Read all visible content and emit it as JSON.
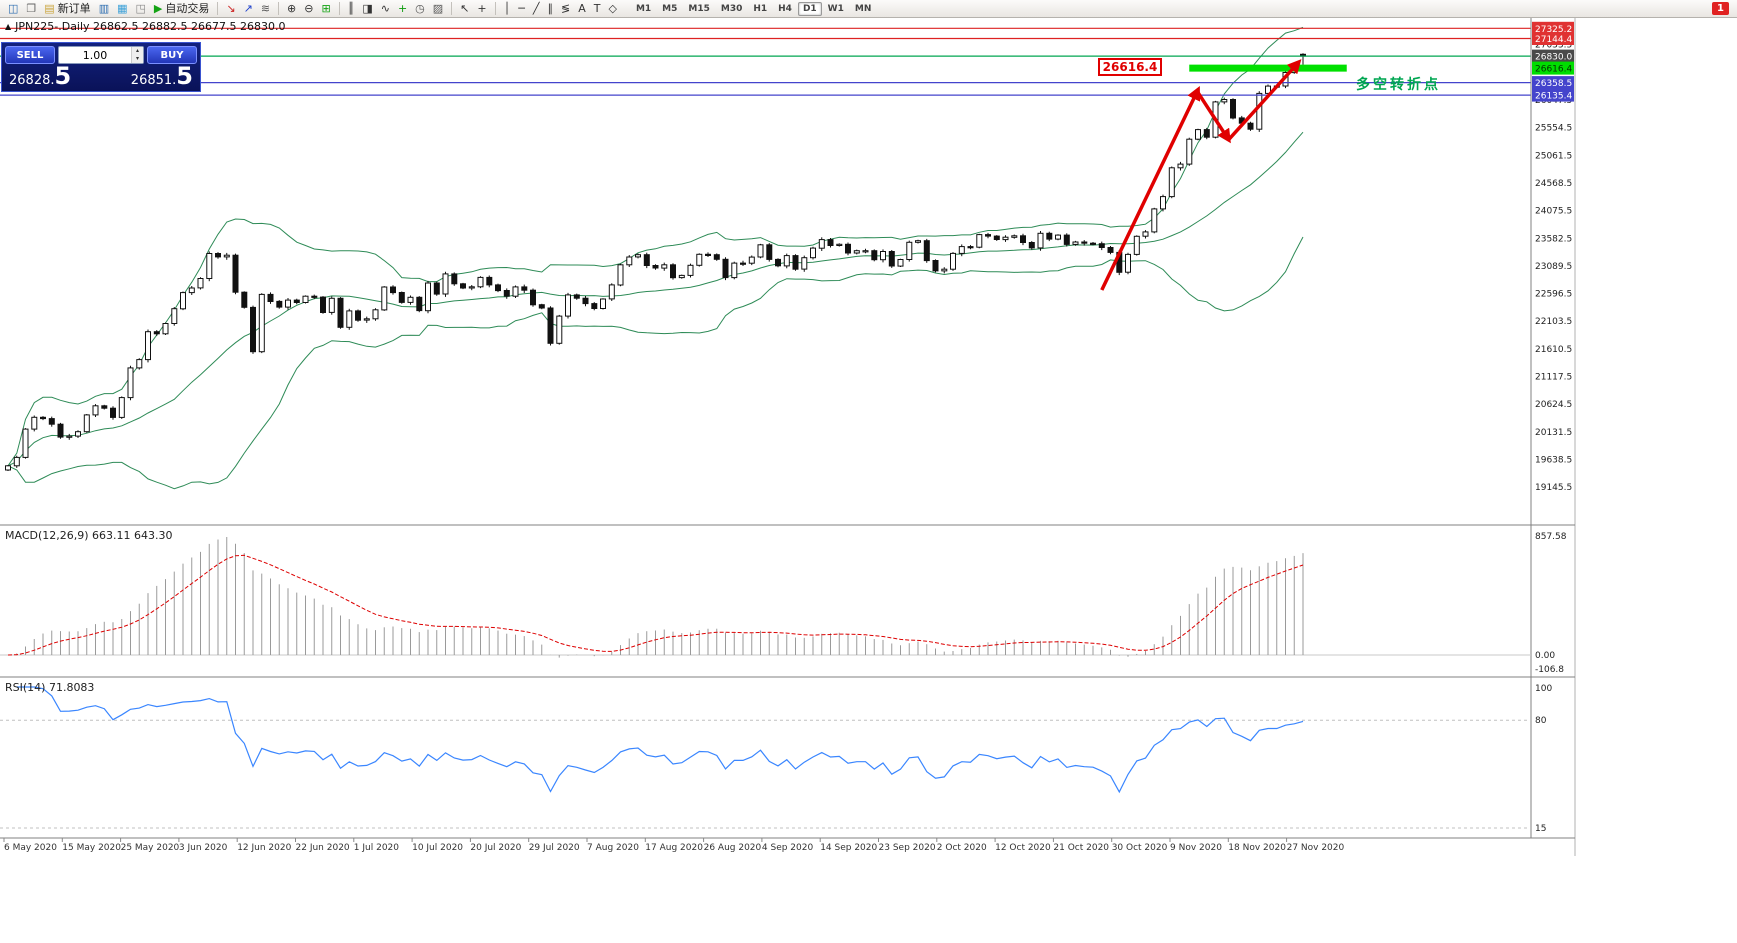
{
  "window": {
    "badge": "1"
  },
  "toolbar": {
    "items": [
      {
        "name": "new-chart-button",
        "glyph": "◫",
        "color": "#2b6cb0"
      },
      {
        "name": "profiles-button",
        "glyph": "❐",
        "color": "#666666"
      },
      {
        "name": "new-order-button",
        "glyph": "▤",
        "color": "#caa53d",
        "label": "新订单"
      },
      {
        "name": "market-watch-button",
        "glyph": "▥",
        "color": "#2b6cb0"
      },
      {
        "name": "data-window-button",
        "glyph": "▦",
        "color": "#3aa0d8"
      },
      {
        "name": "strategy-tester-button",
        "glyph": "◳",
        "color": "#888888"
      },
      {
        "name": "autotrade-button",
        "glyph": "▶",
        "color": "#15a315",
        "label": "自动交易"
      },
      {
        "sep": true
      },
      {
        "name": "sell-marker-button",
        "glyph": "↘",
        "color": "#cc2222"
      },
      {
        "name": "buy-marker-button",
        "glyph": "↗",
        "color": "#2244cc"
      },
      {
        "name": "depth-of-market-button",
        "glyph": "≋",
        "color": "#555555"
      },
      {
        "sep": true
      },
      {
        "name": "zoom-in-button",
        "glyph": "⊕",
        "color": "#333333"
      },
      {
        "name": "zoom-out-button",
        "glyph": "⊖",
        "color": "#333333"
      },
      {
        "name": "tile-windows-button",
        "glyph": "⊞",
        "color": "#15a315"
      },
      {
        "sep": true
      },
      {
        "name": "bar-chart-button",
        "glyph": "║",
        "color": "#333333"
      },
      {
        "name": "candle-chart-button",
        "glyph": "◨",
        "color": "#333333"
      },
      {
        "name": "line-chart-button",
        "glyph": "∿",
        "color": "#333333"
      },
      {
        "name": "add-indicator-button",
        "glyph": "+",
        "color": "#0a9a0a"
      },
      {
        "name": "periods-button",
        "glyph": "◷",
        "color": "#555555"
      },
      {
        "name": "templates-button",
        "glyph": "▨",
        "color": "#555555"
      },
      {
        "sep": true
      },
      {
        "name": "cursor-button",
        "glyph": "↖",
        "color": "#333333"
      },
      {
        "name": "crosshair-button",
        "glyph": "+",
        "color": "#333333"
      },
      {
        "sep": true
      },
      {
        "name": "vertical-line-button",
        "glyph": "│",
        "color": "#333333"
      },
      {
        "name": "horizontal-line-button",
        "glyph": "─",
        "color": "#333333"
      },
      {
        "name": "trendline-button",
        "glyph": "╱",
        "color": "#333333"
      },
      {
        "name": "channel-button",
        "glyph": "∥",
        "color": "#333333"
      },
      {
        "name": "fibonacci-button",
        "glyph": "≶",
        "color": "#333333"
      },
      {
        "name": "text-button",
        "glyph": "A",
        "color": "#333333"
      },
      {
        "name": "label-button",
        "glyph": "T",
        "color": "#333333"
      },
      {
        "name": "shapes-button",
        "glyph": "◇",
        "color": "#333333"
      }
    ],
    "timeframes": [
      "M1",
      "M5",
      "M15",
      "M30",
      "H1",
      "H4",
      "D1",
      "W1",
      "MN"
    ],
    "active_timeframe": "D1"
  },
  "chart_header": {
    "collapse_icon": "▲",
    "symbol_line": "JPN225-.Daily  26862.5 26882.5 26677.5 26830.0"
  },
  "trade_panel": {
    "sell_label": "SELL",
    "buy_label": "BUY",
    "volume": "1.00",
    "spin_up": "▴",
    "spin_down": "▾",
    "bid_main": "26828.",
    "bid_big": "5",
    "ask_main": "26851.",
    "ask_big": "5"
  },
  "annotations": {
    "price_label": "26616.4",
    "turning_point_note": "多空转折点"
  },
  "chart_data": {
    "type": "candlestick",
    "symbol": "JPN225-",
    "period": "Daily",
    "current_bar": {
      "open": 26862.5,
      "high": 26882.5,
      "low": 26677.5,
      "close": 26830.0
    },
    "indicators": [
      "Bollinger Bands (20,2)",
      "MACD(12,26,9)",
      "RSI(14)"
    ],
    "x_labels": [
      "6 May 2020",
      "15 May 2020",
      "25 May 2020",
      "3 Jun 2020",
      "12 Jun 2020",
      "22 Jun 2020",
      "1 Jul 2020",
      "10 Jul 2020",
      "20 Jul 2020",
      "29 Jul 2020",
      "7 Aug 2020",
      "17 Aug 2020",
      "26 Aug 2020",
      "4 Sep 2020",
      "14 Sep 2020",
      "23 Sep 2020",
      "2 Oct 2020",
      "12 Oct 2020",
      "21 Oct 2020",
      "30 Oct 2020",
      "9 Nov 2020",
      "18 Nov 2020",
      "27 Nov 2020"
    ],
    "closes": [
      19525,
      19675,
      20180,
      20390,
      20366,
      20267,
      20037,
      20055,
      20133,
      20433,
      20595,
      20552,
      20388,
      20741,
      21271,
      21419,
      21916,
      21878,
      22062,
      22326,
      22614,
      22696,
      22864,
      23310,
      23250,
      23280,
      22620,
      22350,
      21560,
      22582,
      22456,
      22355,
      22479,
      22437,
      22549,
      22534,
      22260,
      22512,
      21995,
      22288,
      22122,
      22146,
      22306,
      22714,
      22615,
      22438,
      22529,
      22291,
      22785,
      22587,
      22946,
      22770,
      22696,
      22717,
      22884,
      22751,
      22650,
      22550,
      22715,
      22657,
      22397,
      22339,
      21710,
      22195,
      22573,
      22514,
      22418,
      22330,
      22500,
      22750,
      23110,
      23249,
      23289,
      23096,
      23051,
      23110,
      22880,
      22920,
      23100,
      23296,
      23290,
      23208,
      22882,
      23140,
      23138,
      23247,
      23465,
      23205,
      23090,
      23274,
      23032,
      23235,
      23406,
      23559,
      23454,
      23475,
      23319,
      23360,
      23360,
      23200,
      23346,
      23087,
      23204,
      23511,
      23539,
      23185,
      23000,
      23030,
      23312,
      23433,
      23422,
      23647,
      23620,
      23559,
      23601,
      23627,
      23507,
      23410,
      23671,
      23567,
      23639,
      23474,
      23516,
      23494,
      23485,
      23418,
      23331,
      22977,
      23295,
      23618,
      23695,
      24105,
      24325,
      24839,
      24905,
      25349,
      25520,
      25385,
      26014,
      26057,
      25728,
      25634,
      25527,
      26165,
      26296,
      26297,
      26537,
      26645,
      26830
    ],
    "price_axis": {
      "visible_min": 19145.5,
      "visible_max": 27380.0,
      "tick_step": 493.0,
      "regular": [
        "27033.5",
        "26047.5",
        "25554.5",
        "25061.5",
        "24568.5",
        "24075.5",
        "23582.5",
        "23089.5",
        "22596.5",
        "22103.5",
        "21610.5",
        "21117.5",
        "20624.5",
        "20131.5",
        "19638.5",
        "19145.5"
      ],
      "flags": [
        {
          "value": 27325.2,
          "label": "27325.2",
          "bg": "#e03232",
          "fg": "#ffffff"
        },
        {
          "value": 27144.4,
          "label": "27144.4",
          "bg": "#e03232",
          "fg": "#ffffff"
        },
        {
          "value": 26830.0,
          "label": "26830.0",
          "bg": "#4a4a4a",
          "fg": "#ffffff"
        },
        {
          "value": 26616.4,
          "label": "26616.4",
          "bg": "#00dd00",
          "fg": "#003300"
        },
        {
          "value": 26358.5,
          "label": "26358.5",
          "bg": "#4444cc",
          "fg": "#ffffff"
        },
        {
          "value": 26135.4,
          "label": "26135.4",
          "bg": "#4444cc",
          "fg": "#ffffff"
        }
      ]
    },
    "hlines": [
      {
        "price": 27325.2,
        "color": "#dd2222",
        "width": 1.2
      },
      {
        "price": 27144.4,
        "color": "#dd2222",
        "width": 1.2
      },
      {
        "price": 26830.0,
        "color": "#00a651",
        "width": 1.2
      },
      {
        "price": 26358.5,
        "color": "#4444cc",
        "width": 1.2
      },
      {
        "price": 26135.4,
        "color": "#4444cc",
        "width": 1.2
      }
    ],
    "highlight_zone": {
      "price": 26616.4,
      "from_index": 135,
      "to_index": 153,
      "color": "#00e000"
    },
    "trend_arrows": [
      {
        "from": {
          "index": 125,
          "price": 22660
        },
        "to": {
          "index": 136,
          "price": 26230
        }
      },
      {
        "from": {
          "index": 136,
          "price": 26180
        },
        "to": {
          "index": 139.5,
          "price": 25340
        }
      },
      {
        "from": {
          "index": 139.5,
          "price": 25340
        },
        "to": {
          "index": 147.5,
          "price": 26720
        }
      }
    ],
    "macd": {
      "header": "MACD(12,26,9) 663.11 643.30",
      "axis": [
        "857.58",
        "0.00",
        "-106.8"
      ]
    },
    "rsi": {
      "header": "RSI(14) 71.8083",
      "axis": [
        "100",
        "80",
        "15"
      ]
    }
  }
}
